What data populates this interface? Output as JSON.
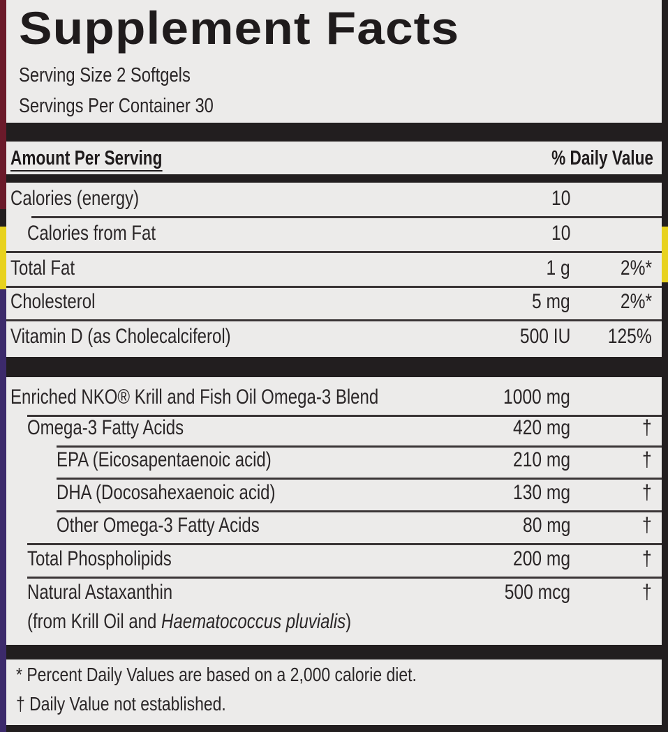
{
  "colors": {
    "panel": "#ecebea",
    "bar": "#221e1f",
    "red_edge": "#6b1a2a",
    "yellow_edge": "#e8d21e",
    "purple_edge": "#3c2a6b"
  },
  "title": "Supplement Facts",
  "serving_size": "Serving Size 2 Softgels",
  "servings_per_container": "Servings Per Container 30",
  "header": {
    "amount": "Amount Per Serving",
    "dv": "% Daily Value"
  },
  "rows": [
    {
      "label": "Calories (energy)",
      "amount": "10",
      "dv": ""
    },
    {
      "label": "Calories from Fat",
      "amount": "10",
      "dv": ""
    },
    {
      "label": "Total Fat",
      "amount": "1 g",
      "dv": "2%*"
    },
    {
      "label": "Cholesterol",
      "amount": "5 mg",
      "dv": "2%*"
    },
    {
      "label": "Vitamin D (as Cholecalciferol)",
      "amount": "500 IU",
      "dv": "125%"
    }
  ],
  "blend_rows": [
    {
      "label": "Enriched NKO® Krill and Fish Oil Omega-3 Blend",
      "amount": "1000 mg",
      "dv": ""
    },
    {
      "label": "Omega-3 Fatty Acids",
      "amount": "420 mg",
      "dv": "†"
    },
    {
      "label": "EPA (Eicosapentaenoic acid)",
      "amount": "210 mg",
      "dv": "†"
    },
    {
      "label": "DHA (Docosahexaenoic acid)",
      "amount": "130 mg",
      "dv": "†"
    },
    {
      "label": "Other Omega-3 Fatty Acids",
      "amount": "80 mg",
      "dv": "†"
    },
    {
      "label": "Total Phospholipids",
      "amount": "200 mg",
      "dv": "†"
    },
    {
      "label": "Natural Astaxanthin",
      "amount": "500 mcg",
      "dv": "†"
    }
  ],
  "astaxanthin_source": {
    "prefix": "(from Krill Oil and ",
    "species": "Haematococcus pluvialis",
    "suffix": ")"
  },
  "footnotes": [
    "* Percent Daily Values are based on a 2,000 calorie diet.",
    "† Daily Value not established."
  ]
}
